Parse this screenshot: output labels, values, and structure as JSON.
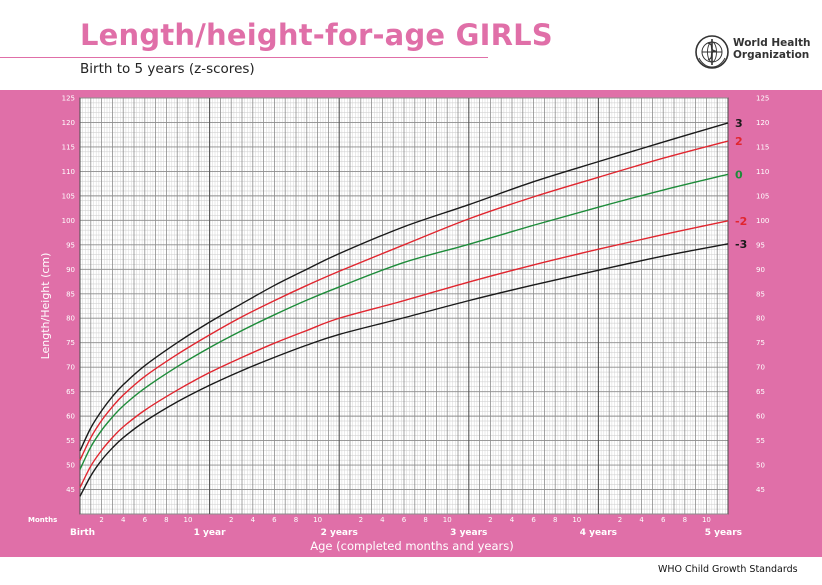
{
  "header": {
    "title": "Length/height-for-age GIRLS",
    "subtitle": "Birth to 5 years (z-scores)",
    "org_line1": "World Health",
    "org_line2": "Organization",
    "logo_icon": "who-emblem-icon"
  },
  "footer": {
    "text": "WHO Child Growth Standards"
  },
  "colors": {
    "brand_pink": "#e06fa8",
    "title_pink": "#e06fa8",
    "grid": "#a8a8a8",
    "z3": "#1a1a1a",
    "z2": "#e1262f",
    "z0": "#1e8c3a",
    "zminus2": "#e1262f",
    "zminus3": "#1a1a1a"
  },
  "chart_data": {
    "type": "line",
    "title": "Length/height-for-age GIRLS",
    "subtitle": "Birth to 5 years (z-scores)",
    "xlabel": "Age (completed months and years)",
    "ylabel": "Length/Height (cm)",
    "xlim": [
      0,
      60
    ],
    "ylim": [
      40,
      125
    ],
    "y_ticks": [
      45,
      50,
      55,
      60,
      65,
      70,
      75,
      80,
      85,
      90,
      95,
      100,
      105,
      110,
      115,
      120,
      125
    ],
    "months_label": "Months",
    "month_ticks": [
      2,
      4,
      6,
      8,
      10
    ],
    "year_labels": [
      {
        "month": 0,
        "label": "Birth"
      },
      {
        "month": 12,
        "label": "1 year"
      },
      {
        "month": 24,
        "label": "2 years"
      },
      {
        "month": 36,
        "label": "3 years"
      },
      {
        "month": 48,
        "label": "4 years"
      },
      {
        "month": 60,
        "label": "5 years"
      }
    ],
    "grid": true,
    "measurement_change_month": 24,
    "series": [
      {
        "name": "3",
        "color": "#1a1a1a",
        "x": [
          0,
          1,
          2,
          3,
          4,
          6,
          9,
          12,
          15,
          18,
          21,
          24,
          30,
          36,
          42,
          48,
          54,
          60
        ],
        "y": [
          52.9,
          57.6,
          61.1,
          64.0,
          66.4,
          70.3,
          75.0,
          79.2,
          83.0,
          86.7,
          90.0,
          93.2,
          98.7,
          103.2,
          107.9,
          112.0,
          116.0,
          119.9
        ]
      },
      {
        "name": "2",
        "color": "#e1262f",
        "x": [
          0,
          1,
          2,
          3,
          4,
          6,
          9,
          12,
          15,
          18,
          21,
          24,
          30,
          36,
          42,
          48,
          54,
          60
        ],
        "y": [
          51.0,
          55.6,
          59.1,
          61.9,
          64.3,
          68.1,
          72.6,
          76.6,
          80.3,
          83.6,
          86.7,
          89.6,
          95.0,
          100.3,
          104.8,
          108.8,
          112.7,
          116.2
        ]
      },
      {
        "name": "0",
        "color": "#1e8c3a",
        "x": [
          0,
          1,
          2,
          3,
          4,
          6,
          9,
          12,
          15,
          18,
          21,
          24,
          30,
          36,
          42,
          48,
          54,
          60
        ],
        "y": [
          49.1,
          53.7,
          57.1,
          59.8,
          62.1,
          65.7,
          70.1,
          74.0,
          77.5,
          80.7,
          83.7,
          86.4,
          91.4,
          95.1,
          99.0,
          102.7,
          106.2,
          109.4
        ]
      },
      {
        "name": "-2",
        "color": "#e1262f",
        "x": [
          0,
          1,
          2,
          3,
          4,
          6,
          9,
          12,
          15,
          18,
          21,
          24,
          30,
          36,
          42,
          48,
          54,
          60
        ],
        "y": [
          45.4,
          49.8,
          53.0,
          55.6,
          57.8,
          61.2,
          65.3,
          68.9,
          72.0,
          74.9,
          77.5,
          80.0,
          83.6,
          87.4,
          90.9,
          94.1,
          97.1,
          99.9
        ]
      },
      {
        "name": "-3",
        "color": "#1a1a1a",
        "x": [
          0,
          1,
          2,
          3,
          4,
          6,
          9,
          12,
          15,
          18,
          21,
          24,
          30,
          36,
          42,
          48,
          54,
          60
        ],
        "y": [
          43.6,
          47.8,
          51.0,
          53.5,
          55.6,
          58.9,
          62.9,
          66.3,
          69.3,
          72.0,
          74.5,
          76.7,
          80.1,
          83.6,
          86.8,
          89.8,
          92.7,
          95.2
        ]
      }
    ]
  }
}
